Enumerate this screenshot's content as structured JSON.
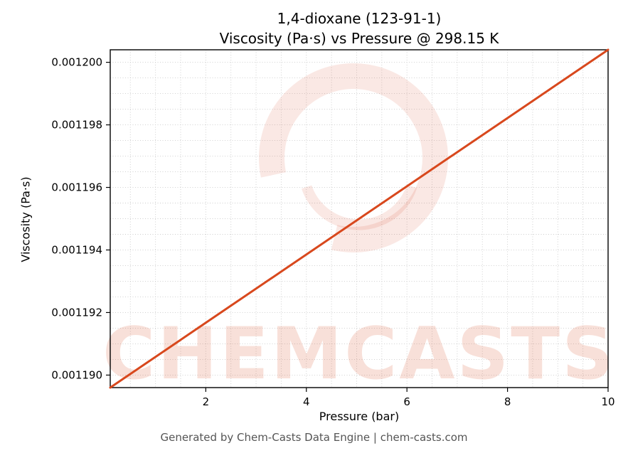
{
  "title": {
    "line1": "1,4-dioxane (123-91-1)",
    "line2": "Viscosity (Pa·s) vs Pressure @ 298.15 K"
  },
  "watermark": {
    "text": "CHEMCASTS"
  },
  "footer": {
    "credit": "Generated by Chem-Casts Data Engine | chem-casts.com"
  },
  "chart_data": {
    "type": "line",
    "title": "1,4-dioxane (123-91-1) — Viscosity (Pa·s) vs Pressure @ 298.15 K",
    "xlabel": "Pressure (bar)",
    "ylabel": "Viscosity (Pa·s)",
    "x": [
      0.1,
      1.2,
      2.3,
      3.4,
      4.5,
      5.6,
      6.7,
      7.8,
      8.9,
      10.0
    ],
    "y": [
      0.0011896,
      0.0011908,
      0.001192,
      0.0011932,
      0.0011944,
      0.0011956,
      0.0011968,
      0.001198,
      0.0011992,
      0.0012004
    ],
    "xlim": [
      0.1,
      10.0
    ],
    "ylim": [
      0.0011896,
      0.0012004
    ],
    "xticks": [
      2,
      4,
      6,
      8,
      10
    ],
    "yticks": [
      0.00119,
      0.001192,
      0.001194,
      0.001196,
      0.001198,
      0.0012
    ],
    "ytick_decimals": 6,
    "grid": true,
    "grid_x_step": 0.5,
    "grid_y_step": 5e-07,
    "line_color": "#d8481d",
    "line_width": 3,
    "grid_color": "#cccccc",
    "watermark_ring_color": "rgba(214,69,31,0.12)",
    "watermark_text_color": "rgba(214,69,31,0.17)",
    "legend": null
  }
}
